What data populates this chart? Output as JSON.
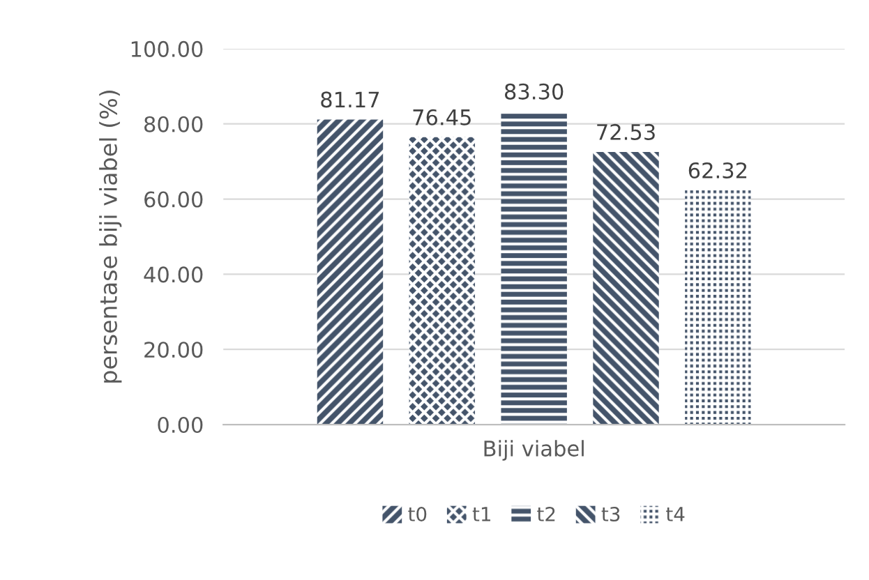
{
  "chart_data": {
    "type": "bar",
    "ylabel": "persentase biji viabel (%)",
    "categories": [
      "Biji viabel"
    ],
    "series": [
      {
        "name": "t0",
        "color": "#44546a",
        "values": [
          81.17
        ],
        "value_labels": [
          "81.17"
        ]
      },
      {
        "name": "t1",
        "color": "#44546a",
        "values": [
          76.45
        ],
        "value_labels": [
          "76.45"
        ]
      },
      {
        "name": "t2",
        "color": "#44546a",
        "values": [
          83.3
        ],
        "value_labels": [
          "83.30"
        ]
      },
      {
        "name": "t3",
        "color": "#44546a",
        "values": [
          72.53
        ],
        "value_labels": [
          "72.53"
        ]
      },
      {
        "name": "t4",
        "color": "#44546a",
        "values": [
          62.32
        ],
        "value_labels": [
          "62.32"
        ]
      }
    ],
    "ylim": [
      0,
      100
    ],
    "yticks": [
      {
        "value": 0,
        "label": "0.00"
      },
      {
        "value": 20,
        "label": "20.00"
      },
      {
        "value": 40,
        "label": "40.00"
      },
      {
        "value": 60,
        "label": "60.00"
      },
      {
        "value": 80,
        "label": "80.00"
      },
      {
        "value": 100,
        "label": "100.00"
      }
    ],
    "grid": "y",
    "legend": "bottom"
  }
}
